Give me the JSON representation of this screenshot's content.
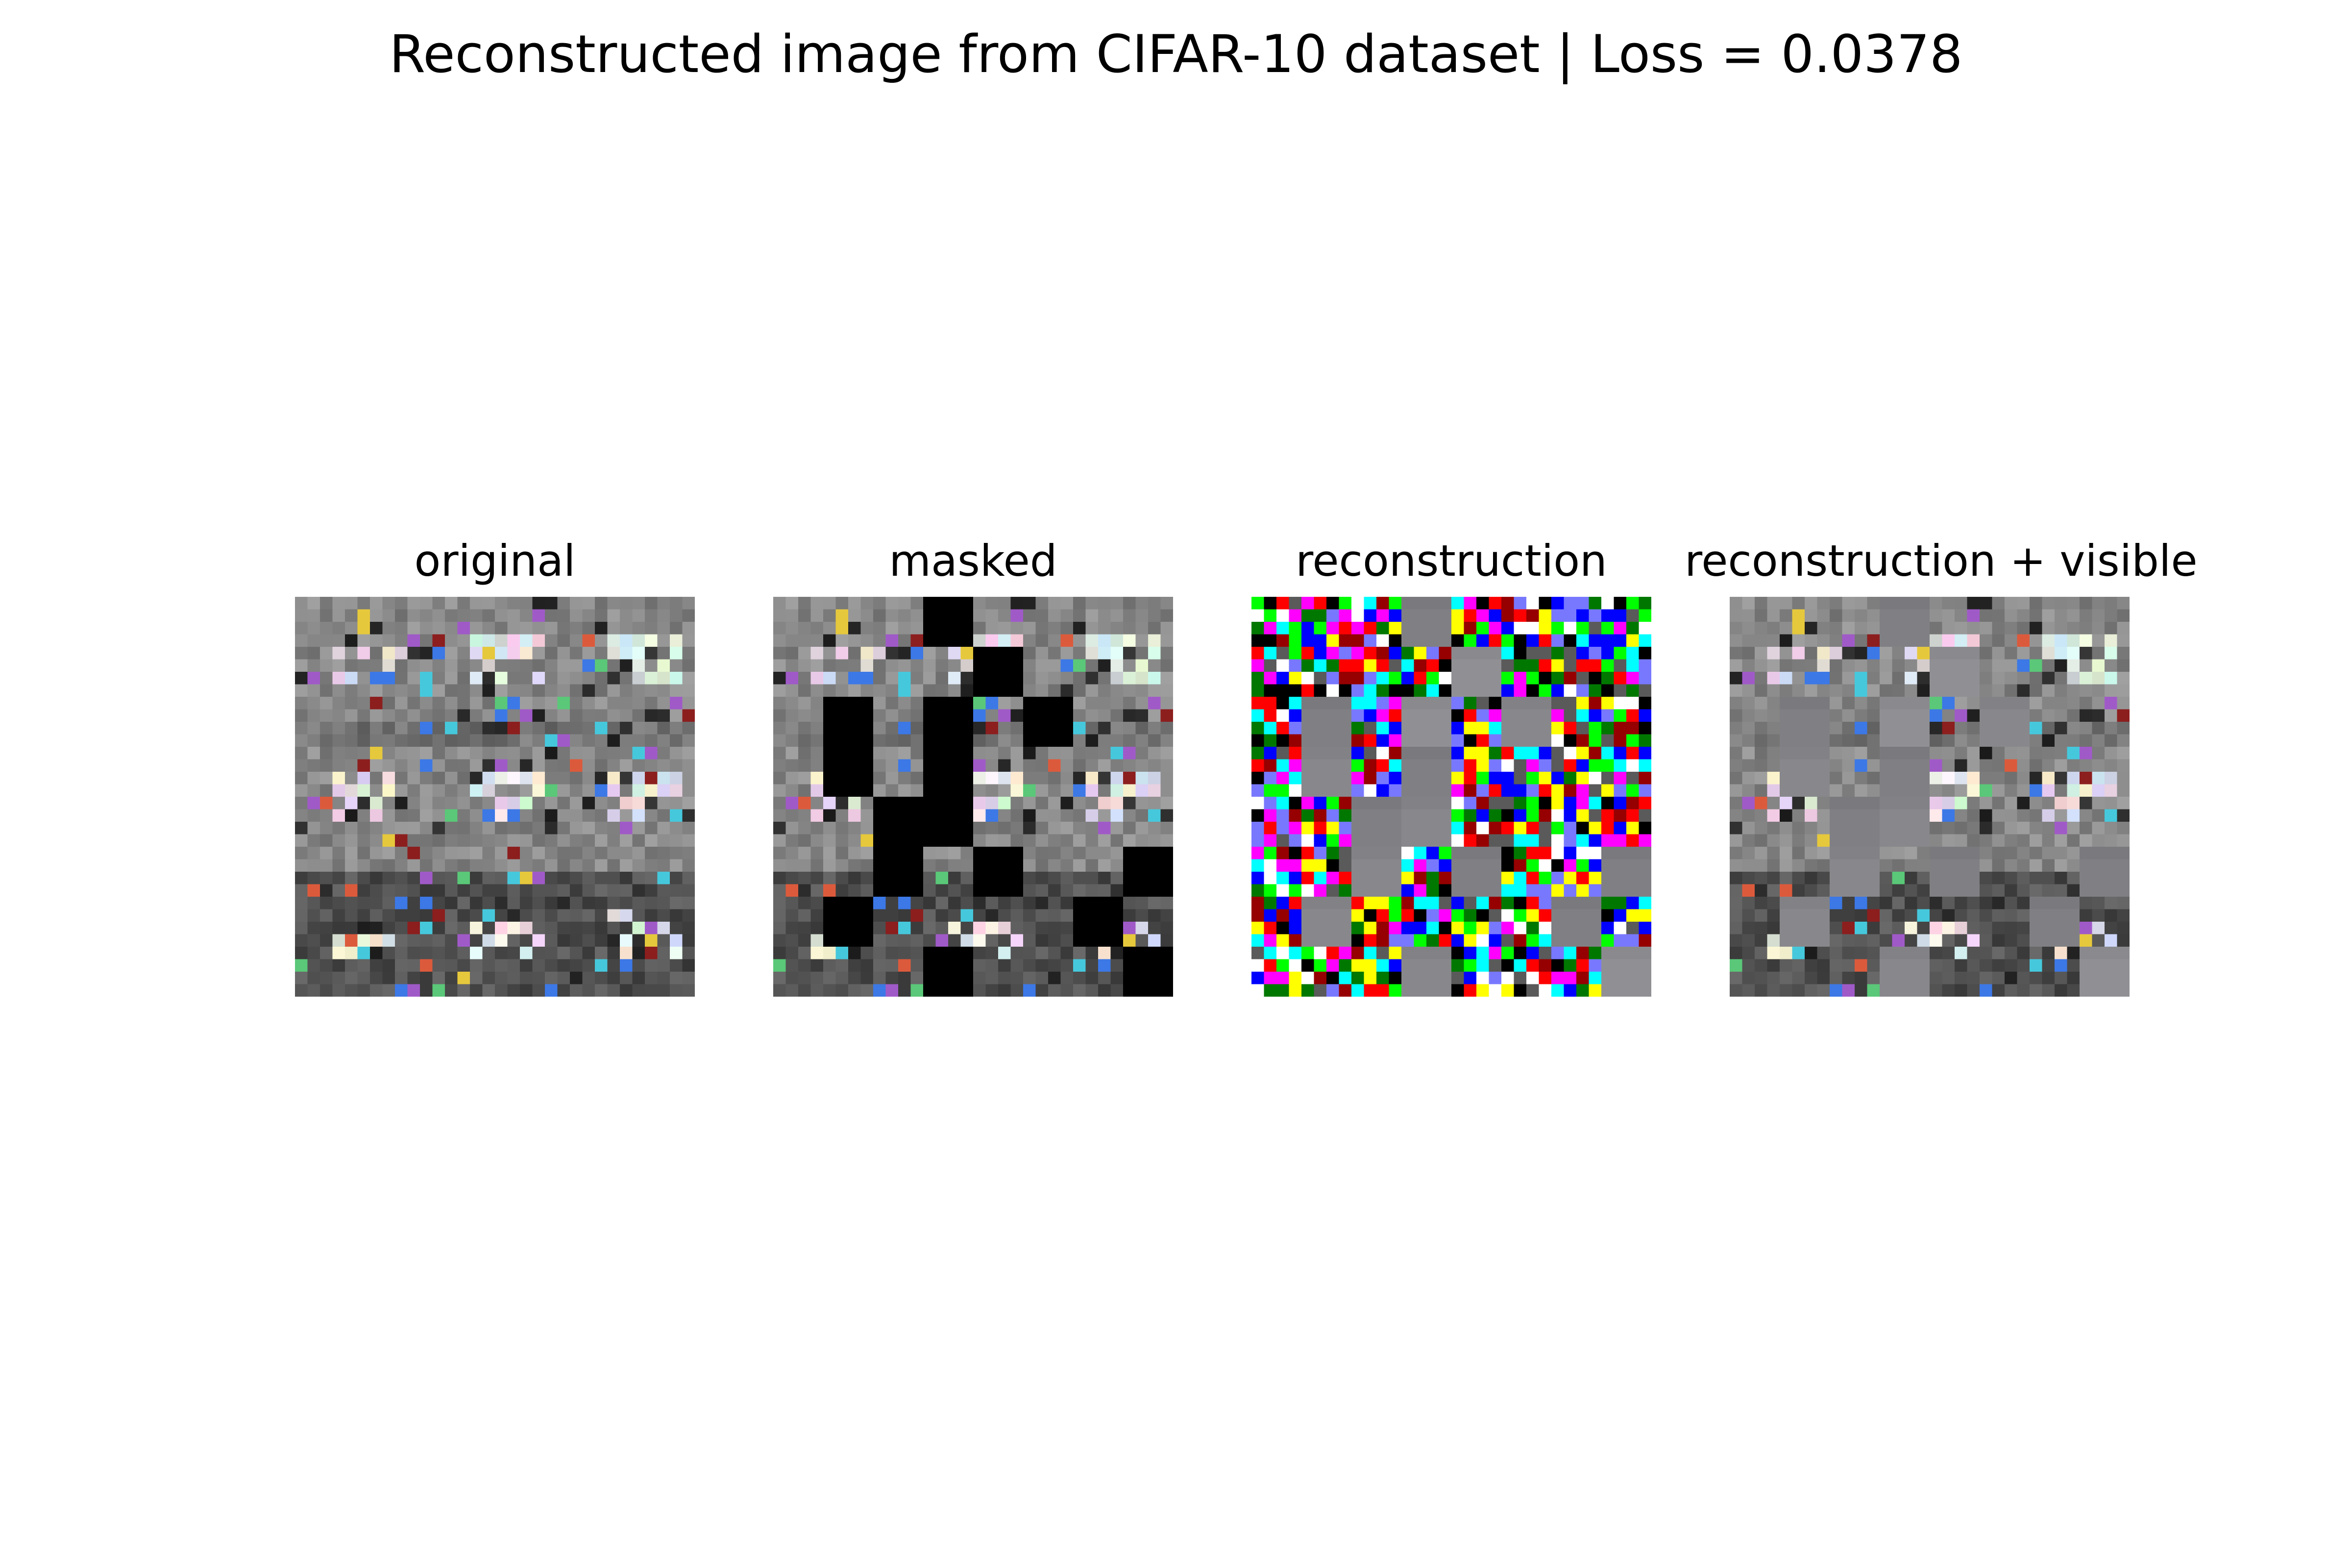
{
  "figure": {
    "title": "Reconstructed image from CIFAR-10 dataset | Loss = 0.0378"
  },
  "image_grid": {
    "patch_grid": "8x8 patches of 4x4 pixels on a 32x32 image",
    "mask_fill_color": "#000000",
    "mask_color_in_reconstruction": "#8c8c8c",
    "masked_patches": [
      [
        0,
        3
      ],
      [
        1,
        4
      ],
      [
        2,
        1
      ],
      [
        2,
        3
      ],
      [
        2,
        5
      ],
      [
        3,
        1
      ],
      [
        3,
        3
      ],
      [
        4,
        2
      ],
      [
        4,
        3
      ],
      [
        5,
        2
      ],
      [
        5,
        4
      ],
      [
        5,
        7
      ],
      [
        6,
        1
      ],
      [
        6,
        6
      ],
      [
        7,
        3
      ],
      [
        7,
        7
      ]
    ]
  },
  "panels": [
    {
      "title": "original"
    },
    {
      "title": "masked"
    },
    {
      "title": "reconstruction"
    },
    {
      "title": "reconstruction + visible"
    }
  ]
}
